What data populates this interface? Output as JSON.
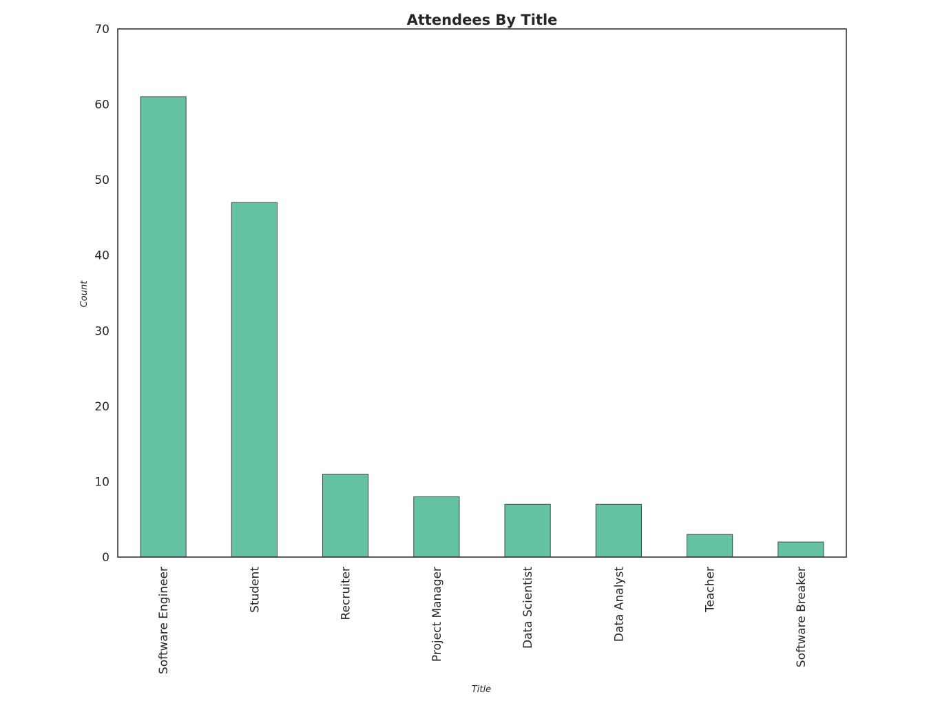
{
  "chart_data": {
    "type": "bar",
    "title": "Attendees By Title",
    "xlabel": "Title",
    "ylabel": "Count",
    "categories": [
      "Software Engineer",
      "Student",
      "Recruiter",
      "Project Manager",
      "Data Scientist",
      "Data Analyst",
      "Teacher",
      "Software Breaker"
    ],
    "values": [
      61,
      47,
      11,
      8,
      7,
      7,
      3,
      2
    ],
    "ylim": [
      0,
      70
    ],
    "yticks": [
      0,
      10,
      20,
      30,
      40,
      50,
      60,
      70
    ],
    "grid": false,
    "legend": "none",
    "colors": {
      "bar_fill": "#66c2a5",
      "bar_edge": "#3c4a45",
      "axis": "#262626"
    }
  }
}
